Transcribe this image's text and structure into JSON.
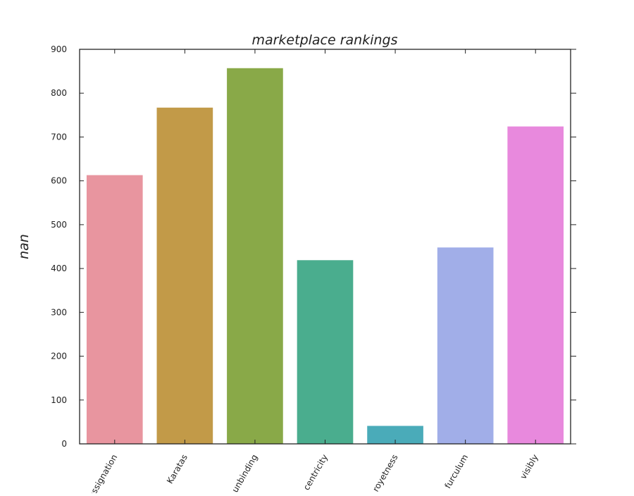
{
  "chart_data": {
    "type": "bar",
    "title": "marketplace rankings",
    "xlabel": "",
    "ylabel": "nan",
    "categories": [
      "assignation",
      "Karatas",
      "unbinding",
      "centricity",
      "royetness",
      "furculum",
      "visibly"
    ],
    "values": [
      613,
      767,
      857,
      419,
      41,
      448,
      724
    ],
    "colors": [
      "#e8959f",
      "#c29a48",
      "#89a948",
      "#4aad8e",
      "#4aabb9",
      "#a1aee8",
      "#e889dd"
    ],
    "ylim": [
      0,
      900
    ],
    "yticks": [
      0,
      100,
      200,
      300,
      400,
      500,
      600,
      700,
      800,
      900
    ],
    "grid": false,
    "legend": "none"
  }
}
